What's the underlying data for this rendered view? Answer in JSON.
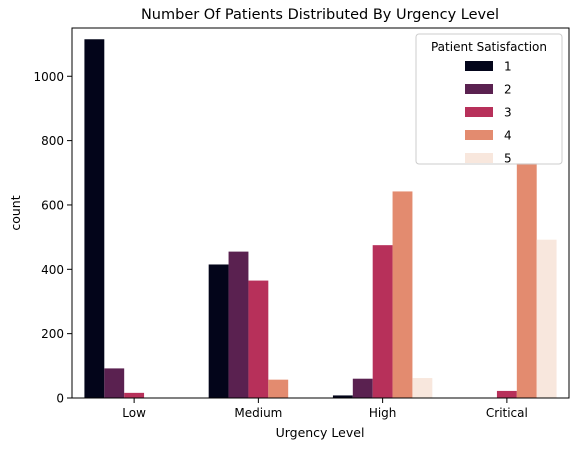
{
  "chart_data": {
    "type": "bar",
    "title": "Number Of Patients Distributed By Urgency Level",
    "xlabel": "Urgency Level",
    "ylabel": "count",
    "categories": [
      "Low",
      "Medium",
      "High",
      "Critical"
    ],
    "ylim": [
      0,
      1150
    ],
    "yticks": [
      0,
      200,
      400,
      600,
      800,
      1000
    ],
    "grid": false,
    "legend": {
      "title": "Patient Satisfaction",
      "placement": "top-right"
    },
    "series": [
      {
        "name": "1",
        "color": "#03051a",
        "values": [
          1115,
          415,
          8,
          0
        ]
      },
      {
        "name": "2",
        "color": "#5a2150",
        "values": [
          92,
          455,
          60,
          0
        ]
      },
      {
        "name": "3",
        "color": "#b7305a",
        "values": [
          16,
          365,
          475,
          22
        ]
      },
      {
        "name": "4",
        "color": "#e38b6f",
        "values": [
          0,
          57,
          642,
          730
        ]
      },
      {
        "name": "5",
        "color": "#f8e7dd",
        "values": [
          0,
          0,
          62,
          492
        ]
      }
    ]
  }
}
